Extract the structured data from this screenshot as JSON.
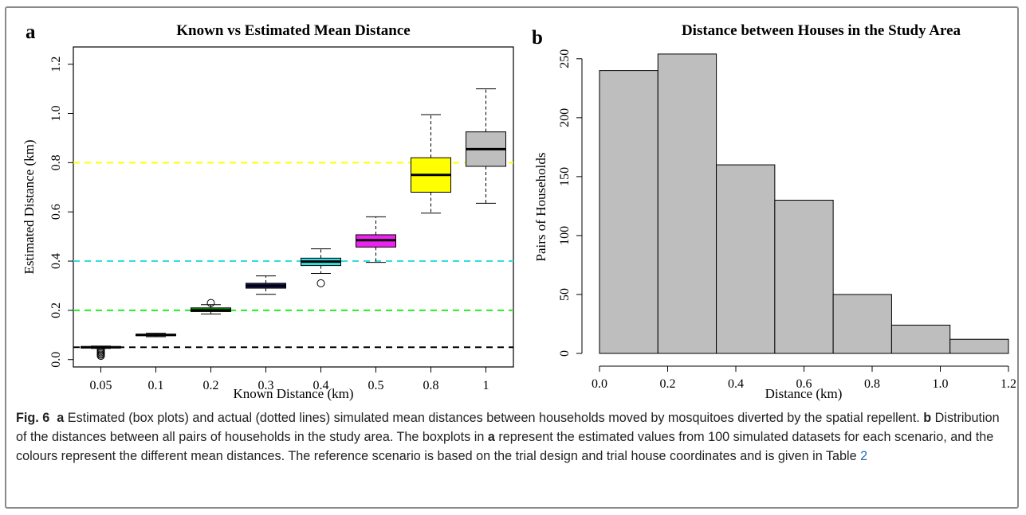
{
  "caption": {
    "fig_label": "Fig. 6",
    "a1": "a",
    "t1": " Estimated (box plots) and actual (dotted lines) simulated mean distances between households moved by mosquitoes diverted by the spatial repellent. ",
    "b1": "b",
    "t2": " Distribution of the distances between all pairs of households in the study area. The boxplots in ",
    "a2": "a",
    "t3": " represent the estimated values from 100 simulated datasets for each scenario, and the colours represent the different mean distances. The reference scenario is based on the trial design and trial house coordinates and is given in Table ",
    "table_ref": "2"
  },
  "chart_data": [
    {
      "panel_label": "a",
      "type": "box",
      "title": "Known vs Estimated Mean Distance",
      "xlabel": "Known Distance (km)",
      "ylabel": "Estimated Distance (km)",
      "ylim": [
        -0.03,
        1.27
      ],
      "yticks": [
        0.0,
        0.2,
        0.4,
        0.6,
        0.8,
        1.0,
        1.2
      ],
      "ytick_labels": [
        "0.0",
        "0.2",
        "0.4",
        "0.6",
        "0.8",
        "1.0",
        "1.2"
      ],
      "categories": [
        "0.05",
        "0.1",
        "0.2",
        "0.3",
        "0.4",
        "0.5",
        "0.8",
        "1"
      ],
      "boxes": [
        {
          "label": "0.05",
          "min": 0.045,
          "q1": 0.047,
          "median": 0.05,
          "q3": 0.053,
          "max": 0.055,
          "outliers": [
            0.015,
            0.02,
            0.025,
            0.03,
            0.035,
            0.04
          ],
          "color": "#000080"
        },
        {
          "label": "0.1",
          "min": 0.093,
          "q1": 0.097,
          "median": 0.1,
          "q3": 0.103,
          "max": 0.107,
          "outliers": [],
          "color": "#000080"
        },
        {
          "label": "0.2",
          "min": 0.185,
          "q1": 0.195,
          "median": 0.2,
          "q3": 0.21,
          "max": 0.223,
          "outliers": [
            0.23
          ],
          "color": "#00b000"
        },
        {
          "label": "0.3",
          "min": 0.265,
          "q1": 0.29,
          "median": 0.3,
          "q3": 0.31,
          "max": 0.34,
          "outliers": [],
          "color": "#1c1c70"
        },
        {
          "label": "0.4",
          "min": 0.35,
          "q1": 0.382,
          "median": 0.398,
          "q3": 0.412,
          "max": 0.45,
          "outliers": [
            0.31
          ],
          "color": "#33dddd"
        },
        {
          "label": "0.5",
          "min": 0.395,
          "q1": 0.457,
          "median": 0.485,
          "q3": 0.507,
          "max": 0.58,
          "outliers": [],
          "color": "#ee22ee"
        },
        {
          "label": "0.8",
          "min": 0.595,
          "q1": 0.68,
          "median": 0.75,
          "q3": 0.82,
          "max": 0.995,
          "outliers": [],
          "color": "#ffff00"
        },
        {
          "label": "1",
          "min": 0.635,
          "q1": 0.785,
          "median": 0.855,
          "q3": 0.925,
          "max": 1.1,
          "outliers": [],
          "color": "#bebebe"
        }
      ],
      "reference_lines": [
        {
          "y": 0.05,
          "color": "#000000"
        },
        {
          "y": 0.2,
          "color": "#22ee22"
        },
        {
          "y": 0.4,
          "color": "#33dddd"
        },
        {
          "y": 0.8,
          "color": "#ffff00"
        }
      ]
    },
    {
      "panel_label": "b",
      "type": "histogram",
      "title": "Distance between Houses in the Study Area",
      "xlabel": "Distance (km)",
      "ylabel": "Pairs of Households",
      "xlim": [
        0.0,
        1.2
      ],
      "xticks": [
        0.0,
        0.2,
        0.4,
        0.6,
        0.8,
        1.0,
        1.2
      ],
      "xtick_labels": [
        "0.0",
        "0.2",
        "0.4",
        "0.6",
        "0.8",
        "1.0",
        "1.2"
      ],
      "ylim": [
        0,
        260
      ],
      "yticks": [
        0,
        50,
        100,
        150,
        200,
        250
      ],
      "ytick_labels": [
        "0",
        "50",
        "100",
        "150",
        "200",
        "250"
      ],
      "bins": [
        0.0,
        0.1714,
        0.3429,
        0.5143,
        0.6857,
        0.8571,
        1.0286,
        1.2
      ],
      "counts": [
        240,
        254,
        160,
        130,
        50,
        24,
        12
      ],
      "fill": "#bebebe"
    }
  ]
}
